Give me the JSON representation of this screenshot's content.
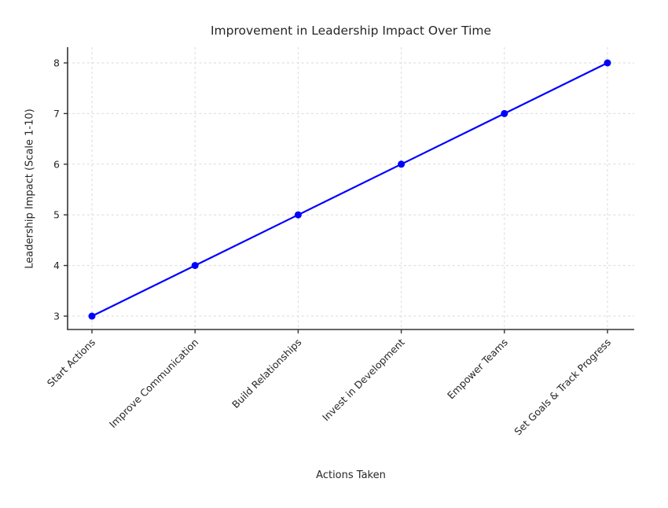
{
  "figure": {
    "background": "#ffffff"
  },
  "chart_data": {
    "type": "line",
    "title": "Improvement in Leadership Impact Over Time",
    "xlabel": "Actions Taken",
    "ylabel": "Leadership Impact (Scale 1-10)",
    "categories": [
      "Start Actions",
      "Improve Communication",
      "Build Relationships",
      "Invest in Development",
      "Empower Teams",
      "Set Goals & Track Progress"
    ],
    "values": [
      3,
      4,
      5,
      6,
      7,
      8
    ],
    "yticks": [
      3,
      4,
      5,
      6,
      7,
      8
    ],
    "ylim": [
      2.74,
      8.31
    ],
    "grid": true,
    "grid_style": "dashed",
    "xticklabel_rotation": 45,
    "legend": "none",
    "colors": {
      "line": "#0000ff",
      "marker": "#0000ff",
      "grid": "#dadada",
      "spine": "#333333",
      "text": "#262626"
    }
  }
}
